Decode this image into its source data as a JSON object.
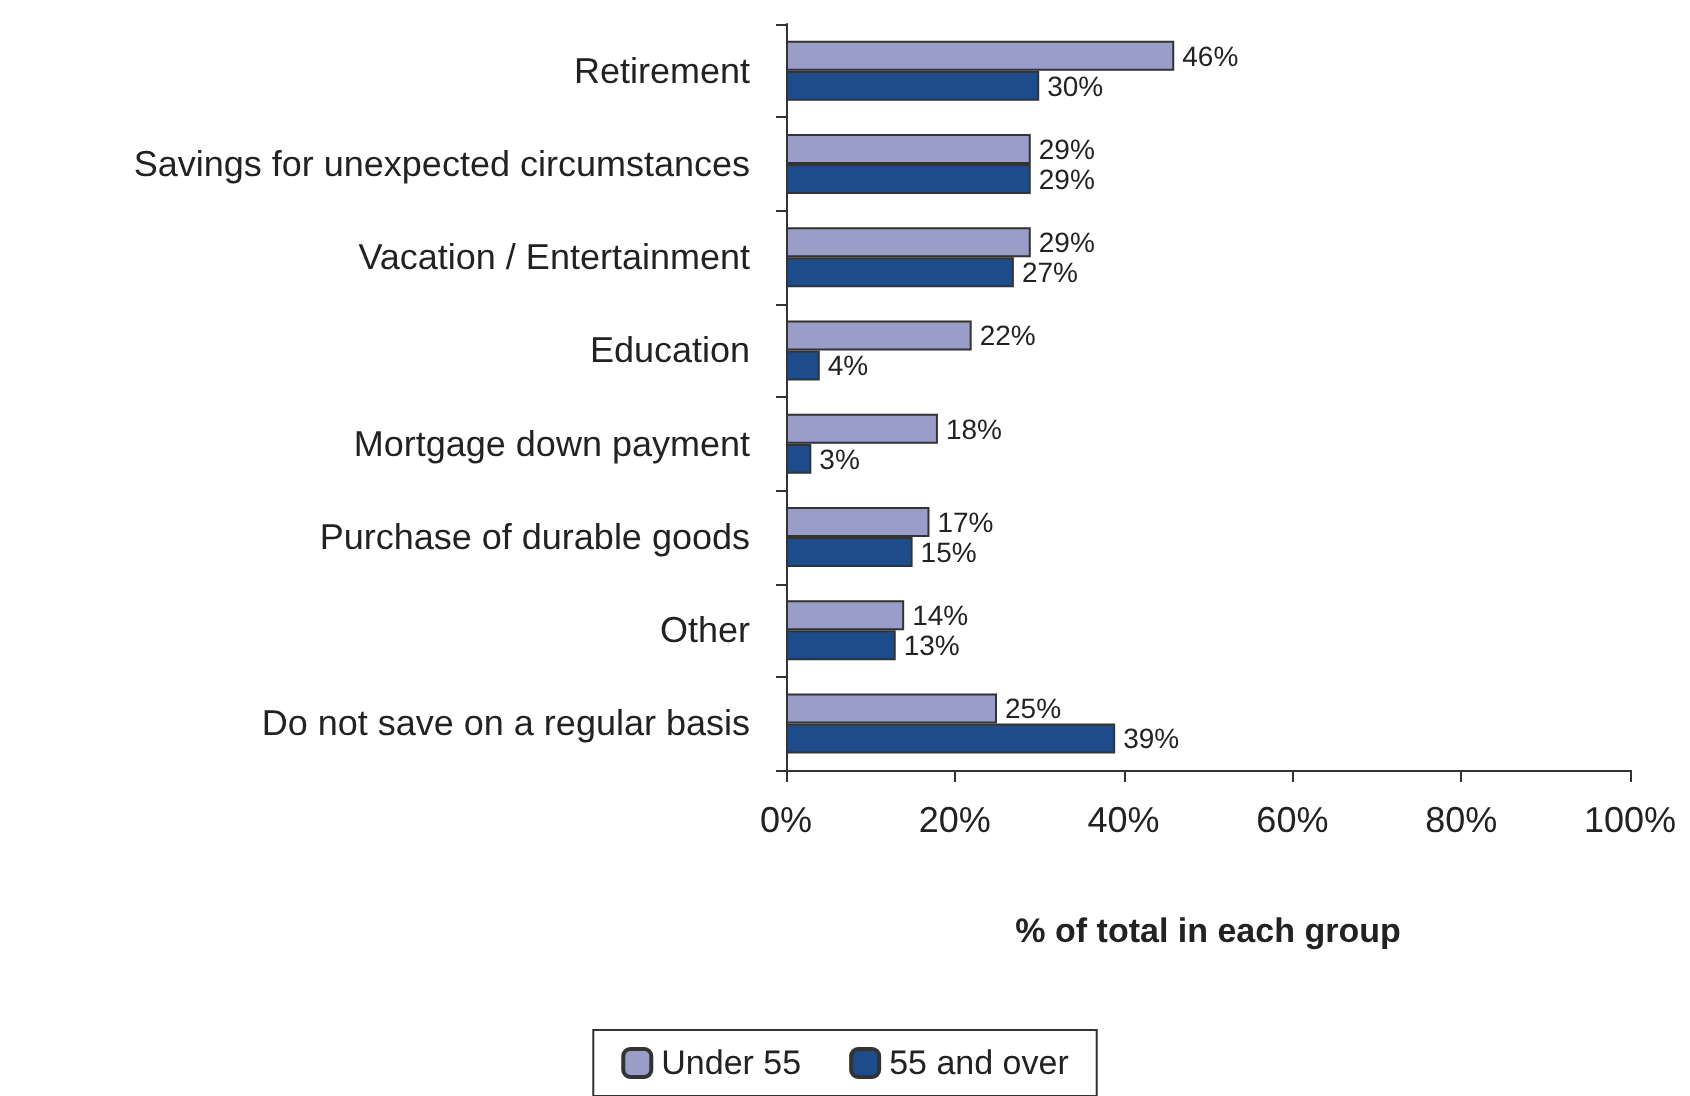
{
  "chart_data": {
    "type": "bar",
    "orientation": "horizontal",
    "xlabel": "% of total in each group",
    "categories": [
      "Retirement",
      "Savings for unexpected circumstances",
      "Vacation / Entertainment",
      "Education",
      "Mortgage down payment",
      "Purchase of durable goods",
      "Other",
      "Do not save on a regular basis"
    ],
    "series": [
      {
        "name": "Under 55",
        "color": "#9b9dc9",
        "values": [
          46,
          29,
          29,
          22,
          18,
          17,
          14,
          25
        ],
        "value_labels": [
          "46%",
          "29%",
          "29%",
          "22%",
          "18%",
          "17%",
          "14%",
          "25%"
        ]
      },
      {
        "name": "55 and over",
        "color": "#1e4c8a",
        "values": [
          30,
          29,
          27,
          4,
          3,
          15,
          13,
          39
        ],
        "value_labels": [
          "30%",
          "29%",
          "27%",
          "4%",
          "3%",
          "15%",
          "13%",
          "39%"
        ]
      }
    ],
    "xlim": [
      0,
      100
    ],
    "xticks": [
      {
        "value": 0,
        "label": "0%"
      },
      {
        "value": 20,
        "label": "20%"
      },
      {
        "value": 40,
        "label": "40%"
      },
      {
        "value": 60,
        "label": "60%"
      },
      {
        "value": 80,
        "label": "80%"
      },
      {
        "value": 100,
        "label": "100%"
      }
    ],
    "grid": false,
    "legend": "bottom"
  }
}
